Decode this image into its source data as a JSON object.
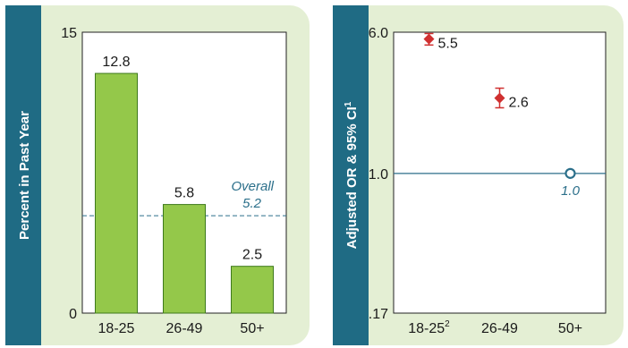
{
  "colors": {
    "panel_bg": "#e4efd4",
    "label_band": "#1f6b84",
    "bar_fill": "#94c84a",
    "bar_stroke": "#3e7a1c",
    "reference": "#2b6f8a",
    "marker": "#d03030",
    "text": "#1a1a1a"
  },
  "chart_data": [
    {
      "type": "bar",
      "ylabel": "Percent in Past Year",
      "ylim": [
        0,
        15
      ],
      "yticks": [
        "0",
        "15"
      ],
      "categories": [
        "18-25",
        "26-49",
        "50+"
      ],
      "values": [
        12.8,
        5.8,
        2.5
      ],
      "value_labels": [
        "12.8",
        "5.8",
        "2.5"
      ],
      "reference_line": {
        "value": 5.2,
        "label_line1": "Overall",
        "label_line2": "5.2",
        "style": "dashed"
      }
    },
    {
      "type": "scatter",
      "ylabel": "Adjusted OR & 95% CI",
      "ylabel_sup": "1",
      "scale": "log",
      "ylim": [
        0.17,
        6.0
      ],
      "yticks": [
        {
          "value": 6.0,
          "label": "6.0"
        },
        {
          "value": 1.0,
          "label": "1.0"
        },
        {
          "value": 0.17,
          "label": ".17"
        }
      ],
      "categories": [
        "18-25",
        "26-49",
        "50+"
      ],
      "category_sup": [
        "2",
        "",
        ""
      ],
      "points": [
        {
          "category": "18-25",
          "value": 5.5,
          "ci": [
            5.1,
            5.9
          ],
          "label": "5.5",
          "marker": "diamond"
        },
        {
          "category": "26-49",
          "value": 2.6,
          "ci": [
            2.3,
            2.95
          ],
          "label": "2.6",
          "marker": "diamond"
        },
        {
          "category": "50+",
          "value": 1.0,
          "label": "1.0",
          "marker": "open-circle",
          "reference": true
        }
      ],
      "reference_line": {
        "value": 1.0
      }
    }
  ]
}
